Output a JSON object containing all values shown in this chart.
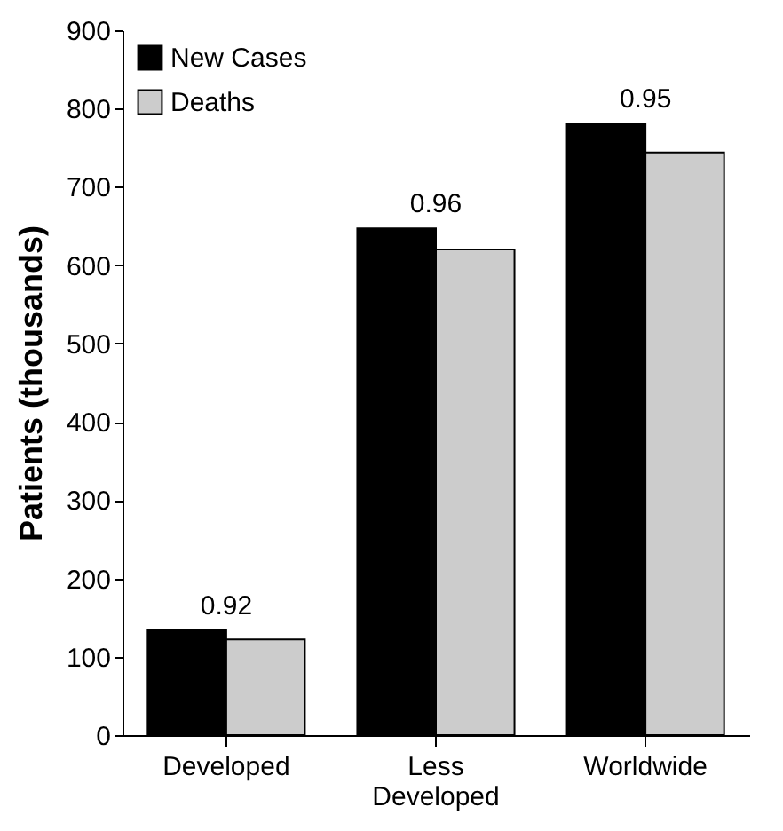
{
  "chart_data": {
    "type": "bar",
    "ylabel": "Patients (thousands)",
    "categories": [
      "Developed",
      "Less Developed",
      "Worldwide"
    ],
    "series": [
      {
        "name": "New Cases",
        "color": "#000000",
        "values": [
          134,
          647,
          781
        ]
      },
      {
        "name": "Deaths",
        "color": "#cccccc",
        "values": [
          122,
          620,
          744
        ]
      }
    ],
    "ylim": [
      0,
      900
    ],
    "yticks": [
      0,
      100,
      200,
      300,
      400,
      500,
      600,
      700,
      800,
      900
    ],
    "annotations": [
      {
        "text": "0.92",
        "x": "Developed",
        "y": 134
      },
      {
        "text": "0.96",
        "x": "Less Developed",
        "y": 647
      },
      {
        "text": "0.95",
        "x": "Worldwide",
        "y": 781
      }
    ],
    "legend": "top left",
    "grid": false
  }
}
